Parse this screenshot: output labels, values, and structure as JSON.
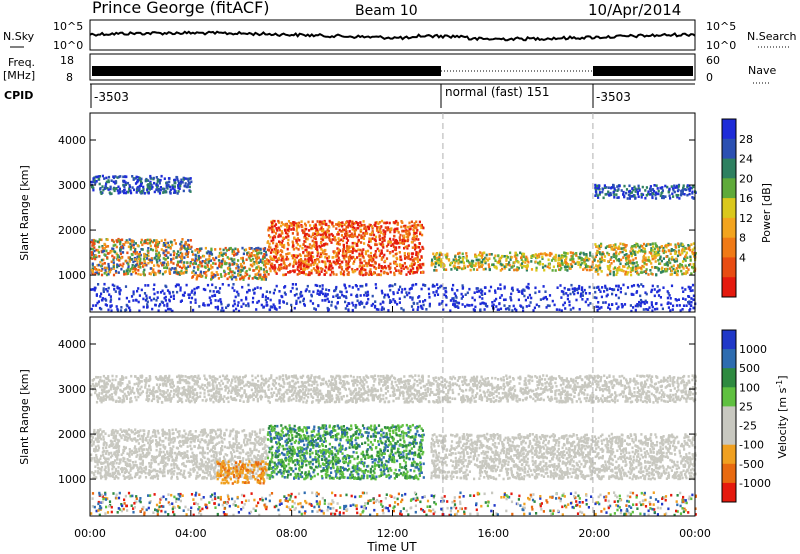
{
  "header": {
    "station": "Prince George (fitACF)",
    "beam": "Beam 10",
    "date": "10/Apr/2014"
  },
  "sky_panel": {
    "label_left": "N.Sky",
    "label_right": "N.Search",
    "tick_top": "10^5",
    "tick_bottom": "10^0"
  },
  "freq_panel": {
    "label_left_line1": "Freq.",
    "label_left_line2": "[MHz]",
    "tick_top_left": "18",
    "tick_bottom_left": "8",
    "tick_top_right": "60",
    "tick_bottom_right": "0",
    "label_right": "Nave"
  },
  "cpid_panel": {
    "label": "CPID",
    "segments": [
      "-3503",
      "normal (fast) 151",
      "-3503"
    ]
  },
  "x_axis": {
    "label": "Time UT",
    "ticks": [
      "00:00",
      "04:00",
      "08:00",
      "12:00",
      "16:00",
      "20:00",
      "00:00"
    ]
  },
  "power_panel": {
    "ylabel": "Slant Range [km]",
    "yticks": [
      "1000",
      "2000",
      "3000",
      "4000"
    ],
    "colorbar_label": "Power [dB]",
    "colorbar_ticks": [
      "4",
      "8",
      "12",
      "16",
      "20",
      "24",
      "28"
    ],
    "colors": [
      "#1e2cd8",
      "#2b50b2",
      "#2e8060",
      "#5faa3a",
      "#dac81c",
      "#f3a41e",
      "#f07a16",
      "#e84c12",
      "#e51a0e"
    ]
  },
  "velocity_panel": {
    "ylabel": "Slant Range [km]",
    "yticks": [
      "1000",
      "2000",
      "3000",
      "4000"
    ],
    "colorbar_label": "Velocity [m s",
    "colorbar_label_sup": "-1",
    "colorbar_label_end": "]",
    "colorbar_ticks": [
      "1000",
      "500",
      "100",
      "25",
      "-25",
      "-100",
      "-500",
      "-1000"
    ],
    "colors": [
      "#2038c8",
      "#2e6cb0",
      "#2e8a40",
      "#5fc040",
      "#c8c8c0",
      "#c8c8c0",
      "#f0a020",
      "#e86a10",
      "#e51a0e"
    ],
    "ground_scatter_color": "#c8c8c0"
  },
  "chart_data": {
    "type": "heatmap",
    "x_range_hours": [
      0,
      24
    ],
    "y_range_km": [
      180,
      4600
    ],
    "cpid_changes_hours": [
      14.0,
      19.95
    ],
    "bands_power": [
      {
        "t0": 0,
        "t1": 4,
        "r0": 1000,
        "r1": 1800,
        "level": "high"
      },
      {
        "t0": 4,
        "t1": 7,
        "r0": 900,
        "r1": 1600,
        "level": "high"
      },
      {
        "t0": 7,
        "t1": 13.2,
        "r0": 1000,
        "r1": 2200,
        "level": "very-high"
      },
      {
        "t0": 13.5,
        "t1": 20,
        "r0": 1100,
        "r1": 1500,
        "level": "mid"
      },
      {
        "t0": 20,
        "t1": 24,
        "r0": 1000,
        "r1": 1700,
        "level": "mid"
      },
      {
        "t0": 0,
        "t1": 4,
        "r0": 2800,
        "r1": 3200,
        "level": "low"
      },
      {
        "t0": 20,
        "t1": 24,
        "r0": 2700,
        "r1": 3000,
        "level": "low"
      }
    ],
    "bands_velocity": [
      {
        "t0": 0,
        "t1": 7,
        "r0": 1000,
        "r1": 2100,
        "type": "ground"
      },
      {
        "t0": 7,
        "t1": 13.2,
        "r0": 1000,
        "r1": 2200,
        "type": "positive"
      },
      {
        "t0": 5,
        "t1": 7,
        "r0": 900,
        "r1": 1400,
        "type": "negative"
      },
      {
        "t0": 13.5,
        "t1": 24,
        "r0": 1000,
        "r1": 2000,
        "type": "ground"
      },
      {
        "t0": 0,
        "t1": 24,
        "r0": 2700,
        "r1": 3300,
        "type": "ground"
      }
    ]
  }
}
